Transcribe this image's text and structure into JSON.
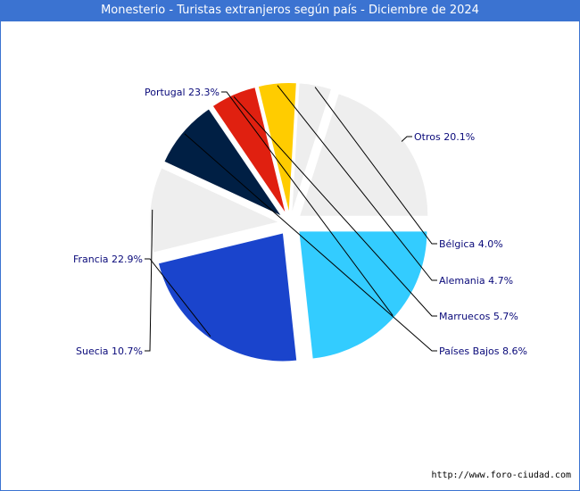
{
  "chart_data": {
    "type": "pie",
    "title": "Monesterio - Turistas extranjeros según país - Diciembre de 2024",
    "slices": [
      {
        "name": "Otros",
        "value": 20.1,
        "label": "Otros 20.1%",
        "color": "#eeeeee"
      },
      {
        "name": "Bélgica",
        "value": 4.0,
        "label": "Bélgica 4.0%",
        "color": "#eeeeee"
      },
      {
        "name": "Alemania",
        "value": 4.7,
        "label": "Alemania 4.7%",
        "color": "#ffcc00"
      },
      {
        "name": "Marruecos",
        "value": 5.7,
        "label": "Marruecos 5.7%",
        "color": "#e02010"
      },
      {
        "name": "Países Bajos",
        "value": 8.6,
        "label": "Países Bajos 8.6%",
        "color": "#001f44"
      },
      {
        "name": "Suecia",
        "value": 10.7,
        "label": "Suecia 10.7%",
        "color": "#eeeeee"
      },
      {
        "name": "Francia",
        "value": 22.9,
        "label": "Francia 22.9%",
        "color": "#1a44cc"
      },
      {
        "name": "Portugal",
        "value": 23.3,
        "label": "Portugal 23.3%",
        "color": "#33ccff"
      }
    ]
  },
  "footer": {
    "url": "http://www.foro-ciudad.com"
  }
}
